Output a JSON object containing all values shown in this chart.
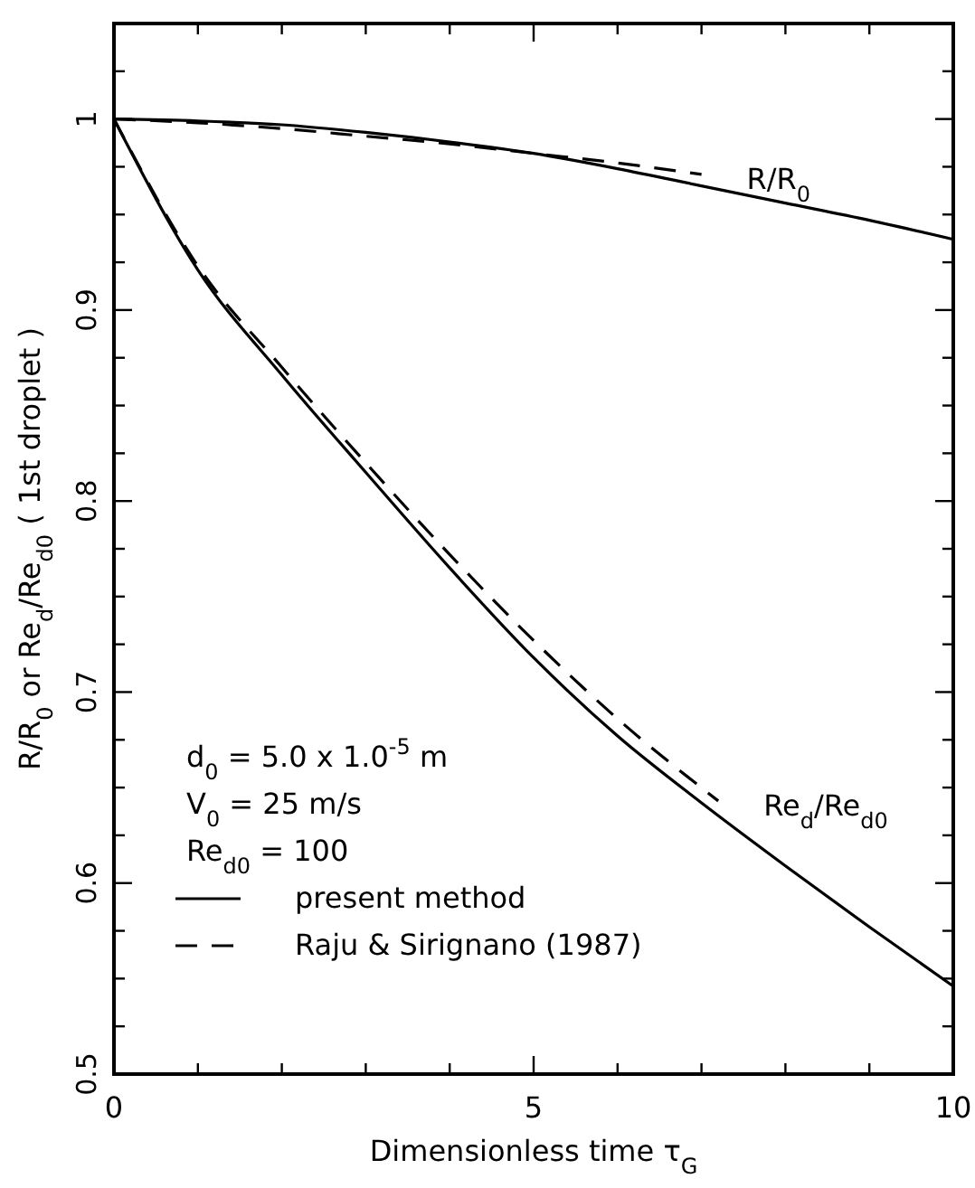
{
  "chart_data": {
    "type": "line",
    "xlabel": "Dimensionless time τ$_{G}$",
    "ylabel": "R/R$_{0}$ or Re$_{d}$/Re$_{d0}$ ( 1st droplet )",
    "xlim": [
      0,
      10
    ],
    "ylim": [
      0.5,
      1.05
    ],
    "xticks": [
      0,
      {
        "value": 1,
        "label": null
      },
      {
        "value": 2,
        "label": null
      },
      {
        "value": 3,
        "label": null
      },
      {
        "value": 4,
        "label": null
      },
      5,
      {
        "value": 6,
        "label": null
      },
      {
        "value": 7,
        "label": null
      },
      {
        "value": 8,
        "label": null
      },
      {
        "value": 9,
        "label": null
      },
      10
    ],
    "yticks": [
      0.5,
      {
        "value": 0.525,
        "label": null
      },
      {
        "value": 0.55,
        "label": null
      },
      {
        "value": 0.575,
        "label": null
      },
      0.6,
      {
        "value": 0.625,
        "label": null
      },
      {
        "value": 0.65,
        "label": null
      },
      {
        "value": 0.675,
        "label": null
      },
      0.7,
      {
        "value": 0.725,
        "label": null
      },
      {
        "value": 0.75,
        "label": null
      },
      {
        "value": 0.775,
        "label": null
      },
      0.8,
      {
        "value": 0.825,
        "label": null
      },
      {
        "value": 0.85,
        "label": null
      },
      {
        "value": 0.875,
        "label": null
      },
      0.9,
      {
        "value": 0.925,
        "label": null
      },
      {
        "value": 0.95,
        "label": null
      },
      {
        "value": 0.975,
        "label": null
      },
      1,
      {
        "value": 1.025,
        "label": null
      },
      {
        "value": 1.05,
        "label": null
      }
    ],
    "grid": false,
    "legend": "bottom left",
    "series": [
      {
        "name": "present method",
        "color": "#000000",
        "line_style": "solid",
        "x": [
          0,
          1,
          2,
          3,
          4,
          5,
          6,
          7,
          8,
          9,
          10
        ],
        "values": [
          1.0,
          0.999,
          0.997,
          0.993,
          0.988,
          0.982,
          0.974,
          0.965,
          0.956,
          0.947,
          0.937
        ]
      },
      {
        "color": "#000000",
        "line_style": "solid",
        "x": [
          0,
          1,
          2,
          3,
          4,
          5,
          6,
          7,
          8,
          9,
          10
        ],
        "values": [
          1.0,
          0.921,
          0.866,
          0.815,
          0.765,
          0.718,
          0.677,
          0.642,
          0.609,
          0.577,
          0.546
        ]
      },
      {
        "name": "Raju & Sirignano (1987)",
        "color": "#000000",
        "line_style": "dashed",
        "x": [
          0,
          1,
          2,
          3,
          4,
          5,
          6,
          7
        ],
        "values": [
          1.0,
          0.998,
          0.995,
          0.991,
          0.987,
          0.982,
          0.977,
          0.971
        ]
      },
      {
        "color": "#000000",
        "line_style": "dashed",
        "x": [
          0,
          1,
          2,
          3,
          4,
          5,
          6,
          7.2
        ],
        "values": [
          1.0,
          0.923,
          0.87,
          0.82,
          0.772,
          0.727,
          0.686,
          0.643
        ]
      }
    ],
    "annotations": [
      "R/R$_{0}$",
      "Re$_{d}$/Re$_{d0}$",
      "d$_{0}$ = 5.0 x 1.0$^{-5}$ m",
      "V$_{0}$ = 25 m/s",
      "Re$_{d0}$ = 100"
    ]
  }
}
